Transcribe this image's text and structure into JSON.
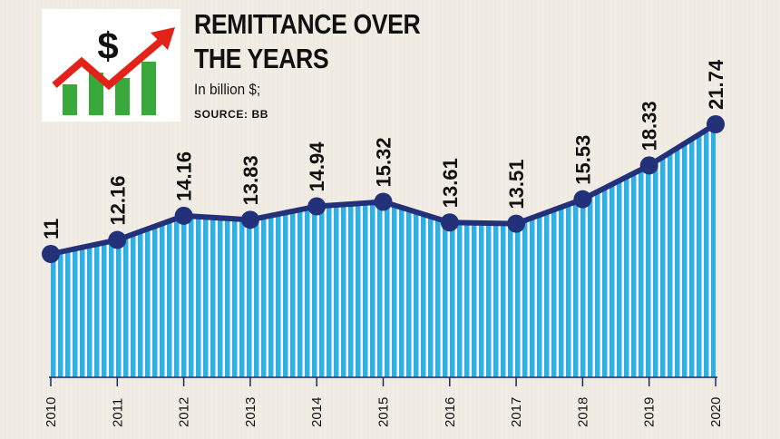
{
  "header": {
    "title_line1": "REMITTANCE OVER",
    "title_line2": "THE YEARS",
    "subtitle": "In billion $;",
    "source": "SOURCE: BB"
  },
  "logo": {
    "icon": "dollar-growth-chart-icon",
    "symbol": "$"
  },
  "colors": {
    "area_stripe": "#2fb0e4",
    "area_gap": "#ffffff",
    "line": "#23317a",
    "arrow": "#e2231a",
    "logo_bars": "#3aa93c"
  },
  "chart_data": {
    "type": "area",
    "x": [
      "2010",
      "2011",
      "2012",
      "2013",
      "2014",
      "2015",
      "2016",
      "2017",
      "2018",
      "2019",
      "2020"
    ],
    "values": [
      11,
      12.16,
      14.16,
      13.83,
      14.94,
      15.32,
      13.61,
      13.51,
      15.53,
      18.33,
      21.74
    ],
    "data_labels": [
      "11",
      "12.16",
      "14.16",
      "13.83",
      "14.94",
      "15.32",
      "13.61",
      "13.51",
      "15.53",
      "18.33",
      "21.74"
    ],
    "title": "REMITTANCE OVER THE YEARS",
    "ylabel": "In billion $;",
    "grid": false,
    "legend": "none"
  }
}
